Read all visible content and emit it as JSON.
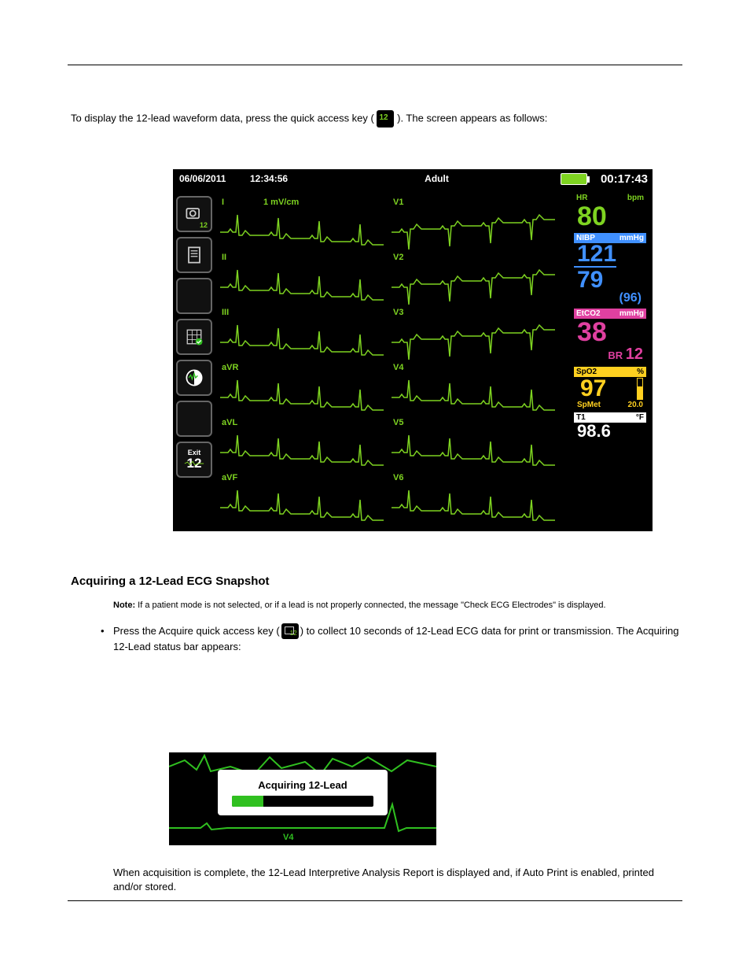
{
  "intro": {
    "prefix": "To display the 12-lead waveform data, press the quick access key (",
    "suffix": "). The screen appears as follows:"
  },
  "monitor": {
    "date": "06/06/2011",
    "time": "12:34:56",
    "mode": "Adult",
    "elapsed": "00:17:43",
    "amplitude": "1 mV/cm",
    "leads_left": [
      "I",
      "II",
      "III",
      "aVR",
      "aVL",
      "aVF"
    ],
    "leads_right": [
      "V1",
      "V2",
      "V3",
      "V4",
      "V5",
      "V6"
    ],
    "sidebar": {
      "exit_label": "Exit",
      "exit_num": "12"
    },
    "vitals": {
      "hr": {
        "label": "HR",
        "unit": "bpm",
        "value": "80",
        "color": "#7ed321"
      },
      "nibp": {
        "label": "NIBP",
        "unit": "mmHg",
        "sys": "121",
        "dia": "79",
        "map": "(96)",
        "color": "#4090ff",
        "hdr_bg": "#4090ff"
      },
      "etco2": {
        "label": "EtCO2",
        "unit": "mmHg",
        "value": "38",
        "br_label": "BR",
        "br_value": "12",
        "color": "#e040a0",
        "hdr_bg": "#e040a0"
      },
      "spo2": {
        "label": "SpO2",
        "unit": "%",
        "value": "97",
        "spmet_label": "SpMet",
        "spmet_value": "20.0",
        "color": "#ffd020",
        "hdr_bg": "#ffd020"
      },
      "t1": {
        "label": "T1",
        "unit": "°F",
        "value": "98.6",
        "color": "#ffffff",
        "hdr_bg": "#ffffff"
      }
    },
    "ecg_color": "#7ed321",
    "background": "#000000"
  },
  "section2": {
    "title": "Acquiring a 12-Lead ECG Snapshot",
    "note_label": "Note:",
    "note_text": "If a patient mode is not selected, or if a lead is not properly connected, the message \"Check ECG Electrodes\" is displayed.",
    "step_prefix": "Press the Acquire quick access key (",
    "step_suffix": ") to collect 10 seconds of 12-Lead ECG data for print or transmission. The Acquiring 12-Lead status bar appears:",
    "acq_label": "Acquiring 12-Lead",
    "acq_progress_pct": 22,
    "acq_v4": "V4"
  },
  "final_text": "When acquisition is complete, the 12-Lead Interpretive Analysis Report is displayed and, if Auto Print is enabled, printed and/or stored."
}
